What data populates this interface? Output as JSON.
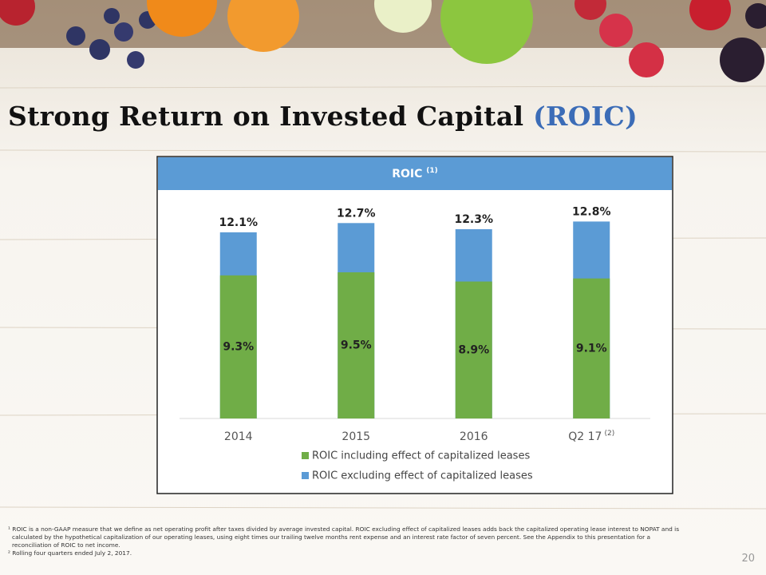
{
  "header": {
    "title": "Strong Return on Invested Capital",
    "title_highlight": "(ROIC)"
  },
  "chart_data": {
    "type": "bar",
    "overlap": true,
    "title": "ROIC",
    "title_note": "(1)",
    "categories": [
      "2014",
      "2015",
      "2016",
      "Q2 17"
    ],
    "category_notes": [
      null,
      null,
      null,
      "(2)"
    ],
    "series": [
      {
        "name": "ROIC including effect of capitalized leases",
        "color": "#70ad47",
        "values": [
          9.3,
          9.5,
          8.9,
          9.1
        ],
        "value_labels": [
          "9.3%",
          "9.5%",
          "8.9%",
          "9.1%"
        ]
      },
      {
        "name": "ROIC excluding effect of capitalized leases",
        "color": "#5b9bd5",
        "values": [
          12.1,
          12.7,
          12.3,
          12.8
        ],
        "value_labels": [
          "12.1%",
          "12.7%",
          "12.3%",
          "12.8%"
        ]
      }
    ],
    "ylim": [
      0,
      15
    ],
    "grid": false,
    "legend": "bottom"
  },
  "footnotes": [
    "¹ ROIC is a non-GAAP measure that we define as net operating profit after taxes divided by average invested capital. ROIC excluding effect of capitalized leases adds back the capitalized operating lease interest to NOPAT and is calculated by the hypothetical capitalization of our operating leases, using eight times our trailing twelve months rent expense and an interest rate factor of seven percent.  See the Appendix to this presentation for a reconciliation of ROIC to net income.",
    "² Rolling four quarters ended July 2, 2017."
  ],
  "page_number": "20"
}
